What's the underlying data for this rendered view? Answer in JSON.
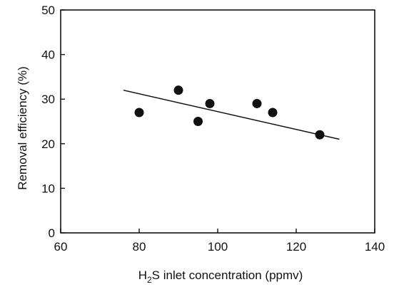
{
  "chart_data": {
    "type": "scatter",
    "title": "",
    "xlabel": {
      "prefix": "H",
      "subscript": "2",
      "suffix": "S inlet concentration (ppmv)"
    },
    "ylabel": "Removal efficiency (%)",
    "xlim": [
      60,
      140
    ],
    "ylim": [
      0,
      50
    ],
    "xticks": [
      60,
      80,
      100,
      120,
      140
    ],
    "yticks": [
      0,
      10,
      20,
      30,
      40,
      50
    ],
    "grid": false,
    "points": [
      {
        "x": 80,
        "y": 27
      },
      {
        "x": 90,
        "y": 32
      },
      {
        "x": 95,
        "y": 25
      },
      {
        "x": 98,
        "y": 29
      },
      {
        "x": 110,
        "y": 29
      },
      {
        "x": 114,
        "y": 27
      },
      {
        "x": 126,
        "y": 22
      }
    ],
    "trendline": {
      "x": [
        76,
        131
      ],
      "y": [
        32,
        21
      ]
    }
  },
  "colors": {
    "axis": "#111111",
    "marker": "#111111",
    "line": "#111111"
  }
}
